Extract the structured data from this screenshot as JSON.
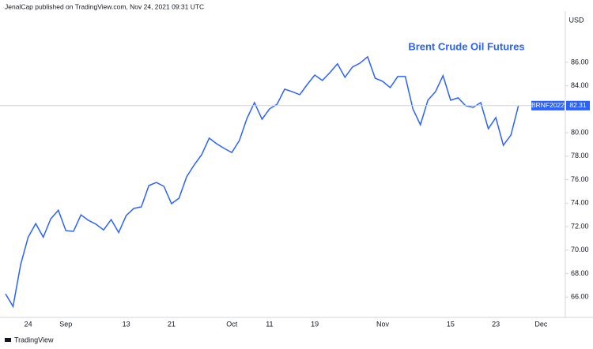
{
  "header": "JenalCap published on TradingView.com, Nov 24, 2021 09:31 UTC",
  "footer": "TradingView",
  "chart_data": {
    "type": "line",
    "title": "Brent Crude Oil Futures",
    "unit": "USD",
    "categories": [
      null,
      null,
      null,
      "24",
      null,
      null,
      null,
      null,
      "Sep",
      null,
      null,
      null,
      null,
      null,
      null,
      null,
      "13",
      null,
      null,
      null,
      null,
      null,
      "21",
      null,
      null,
      null,
      null,
      null,
      null,
      null,
      "Oct",
      null,
      null,
      null,
      null,
      "11",
      null,
      null,
      null,
      null,
      null,
      "19",
      null,
      null,
      null,
      null,
      null,
      null,
      null,
      null,
      "Nov",
      null,
      null,
      null,
      null,
      null,
      null,
      null,
      null,
      "15",
      null,
      null,
      null,
      null,
      null,
      "23",
      null,
      null,
      null,
      null,
      null,
      "Dec"
    ],
    "series": [
      {
        "name": "BRNF2022",
        "color": "#2962ff",
        "values": [
          66.27,
          65.2,
          68.76,
          71.1,
          72.26,
          71.1,
          72.67,
          73.4,
          71.66,
          71.6,
          73.0,
          72.53,
          72.2,
          71.72,
          72.6,
          71.5,
          72.94,
          73.55,
          73.68,
          75.5,
          75.76,
          75.43,
          73.95,
          74.42,
          76.24,
          77.25,
          78.12,
          79.54,
          79.06,
          78.66,
          78.32,
          79.33,
          81.22,
          82.57,
          81.15,
          82.03,
          82.43,
          83.71,
          83.5,
          83.24,
          84.11,
          84.92,
          84.45,
          85.12,
          85.87,
          84.72,
          85.6,
          85.93,
          86.47,
          84.65,
          84.38,
          83.85,
          84.79,
          84.79,
          82.03,
          80.68,
          82.77,
          83.5,
          84.86,
          82.77,
          82.97,
          82.3,
          82.16,
          82.57,
          80.34,
          81.29,
          78.93,
          79.8,
          82.31,
          null,
          null,
          null
        ]
      }
    ],
    "ylim": [
      64.4,
      90.5
    ],
    "yticks": [
      {
        "value": 66,
        "label": "66.00"
      },
      {
        "value": 68,
        "label": "68.00"
      },
      {
        "value": 70,
        "label": "70.00"
      },
      {
        "value": 72,
        "label": "72.00"
      },
      {
        "value": 74,
        "label": "74.00"
      },
      {
        "value": 76,
        "label": "76.00"
      },
      {
        "value": 78,
        "label": "78.00"
      },
      {
        "value": 80,
        "label": "80.00"
      },
      {
        "value": 84,
        "label": "84.00"
      },
      {
        "value": 86,
        "label": "86.00"
      }
    ]
  }
}
